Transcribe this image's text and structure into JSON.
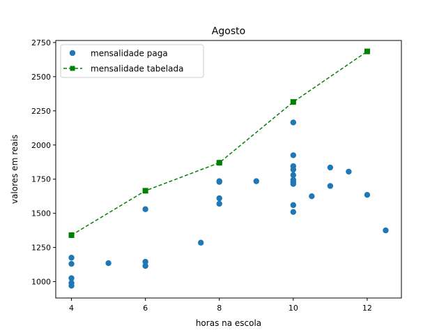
{
  "chart_data": {
    "type": "scatter",
    "title": "Agosto",
    "xlabel": "horas na escola",
    "ylabel": "valores em reais",
    "xlim": [
      3.575,
      12.925
    ],
    "ylim": [
      880,
      2765
    ],
    "xticks": [
      4,
      6,
      8,
      10,
      12
    ],
    "yticks": [
      1000,
      1250,
      1500,
      1750,
      2000,
      2250,
      2500,
      2750
    ],
    "grid": false,
    "legend_position": "upper-left",
    "series": [
      {
        "name": "mensalidade paga",
        "kind": "scatter",
        "marker": "circle",
        "color": "#1f77b4",
        "points": [
          [
            4,
            1175
          ],
          [
            4,
            1130
          ],
          [
            4,
            1025
          ],
          [
            4,
            990
          ],
          [
            4,
            970
          ],
          [
            5,
            1135
          ],
          [
            6,
            1530
          ],
          [
            6,
            1145
          ],
          [
            6,
            1115
          ],
          [
            7.5,
            1285
          ],
          [
            8,
            1870
          ],
          [
            8,
            1735
          ],
          [
            8,
            1730
          ],
          [
            8,
            1610
          ],
          [
            8,
            1570
          ],
          [
            9,
            1735
          ],
          [
            10,
            2165
          ],
          [
            10,
            1925
          ],
          [
            10,
            1845
          ],
          [
            10,
            1820
          ],
          [
            10,
            1780
          ],
          [
            10,
            1745
          ],
          [
            10,
            1730
          ],
          [
            10,
            1715
          ],
          [
            10,
            1560
          ],
          [
            10,
            1510
          ],
          [
            10.5,
            1625
          ],
          [
            11,
            1835
          ],
          [
            11,
            1700
          ],
          [
            11.5,
            1805
          ],
          [
            12,
            1635
          ],
          [
            12.5,
            1375
          ]
        ]
      },
      {
        "name": "mensalidade tabelada",
        "kind": "line",
        "marker": "square",
        "line_style": "dashed",
        "color": "#008000",
        "points": [
          [
            4,
            1340
          ],
          [
            6,
            1665
          ],
          [
            8,
            1870
          ],
          [
            10,
            2315
          ],
          [
            12,
            2685
          ]
        ]
      }
    ]
  }
}
